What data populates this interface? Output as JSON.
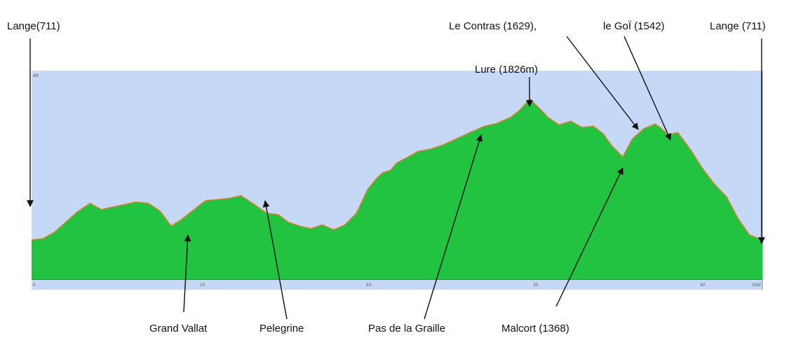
{
  "chart_data": {
    "type": "area",
    "title": "",
    "xlabel": "",
    "ylabel": "",
    "colors": {
      "area_fill": "#22c340",
      "outline": "#d9822b",
      "plot_background": "#c5d8f5",
      "axis_band": "#c5d8f5",
      "arrow": "#111111"
    },
    "grid": false,
    "x_tick_labels": [
      "0",
      "10",
      "20",
      "30",
      "40",
      "Dist"
    ],
    "y_axis_label_top": "Alt",
    "x": [
      0,
      0.7,
      1.4,
      2.1,
      2.8,
      3.6,
      4.3,
      5.0,
      5.7,
      6.4,
      7.2,
      7.9,
      8.6,
      9.1,
      9.4,
      10.0,
      10.7,
      11.5,
      12.2,
      12.9,
      13.6,
      14.5,
      15.2,
      15.8,
      16.5,
      17.2,
      17.9,
      18.6,
      19.3,
      20.0,
      20.7,
      21.2,
      21.6,
      22.1,
      22.5,
      23.1,
      23.8,
      24.6,
      25.3,
      26.0,
      27.0,
      27.9,
      28.6,
      29.5,
      30.0,
      30.7,
      31.2,
      31.8,
      32.5,
      33.2,
      33.9,
      34.6,
      35.2,
      35.7,
      36.4,
      37.0,
      37.7,
      38.4,
      38.8,
      39.2,
      39.8,
      40.6,
      41.3,
      42.0,
      42.8,
      43.5,
      44.2,
      45.0
    ],
    "y": [
      711,
      721,
      771,
      851,
      931,
      1001,
      951,
      971,
      991,
      1011,
      1001,
      941,
      821,
      861,
      891,
      951,
      1021,
      1031,
      1041,
      1061,
      1001,
      921,
      911,
      851,
      821,
      801,
      831,
      791,
      831,
      921,
      1111,
      1191,
      1241,
      1261,
      1321,
      1361,
      1411,
      1431,
      1461,
      1501,
      1561,
      1611,
      1631,
      1681,
      1731,
      1826,
      1761,
      1681,
      1621,
      1651,
      1601,
      1611,
      1551,
      1461,
      1368,
      1511,
      1591,
      1629,
      1591,
      1542,
      1561,
      1421,
      1281,
      1161,
      1051,
      881,
      751,
      711
    ],
    "annotations": [
      {
        "text": "Lange(711)",
        "point_x": 0,
        "point_y": 711
      },
      {
        "text": "Grand Vallat",
        "point_x": 9.4,
        "point_y": 891
      },
      {
        "text": "Pelegrine",
        "point_x": 14.1,
        "point_y": 1021
      },
      {
        "text": "Pas de la Graille",
        "point_x": 27.4,
        "point_y": 1590
      },
      {
        "text": "Lure (1826m)",
        "point_x": 30.0,
        "point_y": 1826
      },
      {
        "text": "Malcort (1368)",
        "point_x": 36.4,
        "point_y": 1368
      },
      {
        "text": "Le Contras (1629),",
        "point_x": 37.9,
        "point_y": 1620
      },
      {
        "text": "le GoÏ (1542)",
        "point_x": 39.8,
        "point_y": 1565
      },
      {
        "text": "Lange (711)",
        "point_x": 45.0,
        "point_y": 711
      }
    ]
  }
}
